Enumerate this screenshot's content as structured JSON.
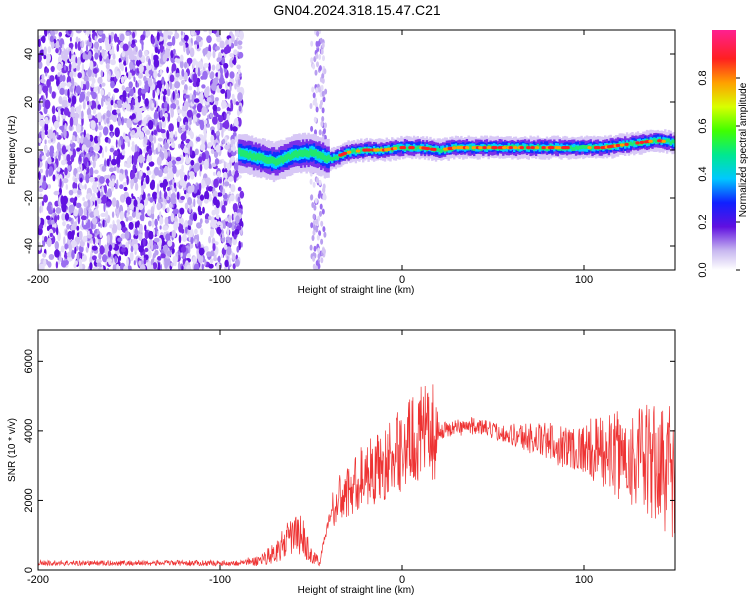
{
  "title": "GN04.2024.318.15.47.C21",
  "chart_data": [
    {
      "type": "heatmap",
      "xlabel": "Height of straight line (km)",
      "ylabel": "Frequency (Hz)",
      "xlim": [
        -200,
        150
      ],
      "ylim": [
        -50,
        50
      ],
      "xticks": [
        -200,
        -100,
        0,
        100
      ],
      "yticks": [
        -40,
        -20,
        0,
        20,
        40
      ],
      "colorbar": {
        "label": "Normalized spectral amplitude",
        "range": [
          0,
          1
        ],
        "ticks": [
          0.0,
          0.2,
          0.4,
          0.6,
          0.8
        ],
        "tick_labels": [
          "0.0",
          "0.2",
          "0.4",
          "0.6",
          "0.8"
        ]
      },
      "ridge": {
        "x": [
          -90,
          -80,
          -70,
          -60,
          -50,
          -40,
          -30,
          -20,
          -10,
          0,
          10,
          20,
          30,
          40,
          50,
          60,
          70,
          80,
          90,
          100,
          110,
          120,
          130,
          140,
          150
        ],
        "y": [
          -1,
          -3,
          -5,
          -2,
          -1,
          -4,
          -1,
          0,
          0,
          1,
          1,
          0,
          1,
          1,
          1,
          1,
          1,
          1,
          1,
          1,
          1,
          2,
          3,
          4,
          3
        ]
      }
    },
    {
      "type": "line",
      "xlabel": "Height of straight line (km)",
      "ylabel": "SNR (10 * v/v)",
      "xlim": [
        -200,
        150
      ],
      "ylim": [
        0,
        6900
      ],
      "xticks": [
        -200,
        -100,
        0,
        100
      ],
      "yticks": [
        0,
        2000,
        4000,
        6000
      ],
      "color": "#ee3333",
      "envelope": {
        "x": [
          -200,
          -180,
          -160,
          -140,
          -120,
          -100,
          -90,
          -80,
          -70,
          -60,
          -55,
          -50,
          -45,
          -40,
          -35,
          -30,
          -25,
          -20,
          -10,
          0,
          10,
          20,
          30,
          40,
          50,
          60,
          70,
          80,
          90,
          100,
          110,
          120,
          130,
          140,
          150
        ],
        "y": [
          200,
          200,
          200,
          200,
          200,
          200,
          200,
          250,
          500,
          1000,
          1000,
          400,
          250,
          1500,
          2000,
          2200,
          2500,
          2800,
          3000,
          3500,
          3900,
          4000,
          4100,
          4150,
          4000,
          3900,
          3800,
          3700,
          3550,
          3500,
          3400,
          3300,
          3200,
          3000,
          2900
        ]
      }
    }
  ]
}
